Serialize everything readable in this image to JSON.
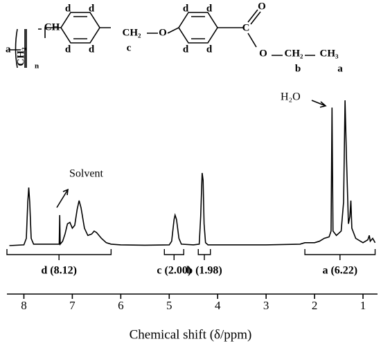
{
  "chart_data": {
    "type": "line",
    "x_label": "Chemical shift (δ/ppm)",
    "xlim": [
      8.35,
      0.7
    ],
    "xticks": [
      8,
      7,
      6,
      5,
      4,
      3,
      2,
      1
    ],
    "ylim": [
      0,
      100
    ],
    "color": "#000000",
    "x": [
      8.3,
      8.0,
      7.95,
      7.92,
      7.9,
      7.88,
      7.85,
      7.8,
      7.5,
      7.3,
      7.27,
      7.26,
      7.25,
      7.2,
      7.15,
      7.1,
      7.05,
      7.0,
      6.95,
      6.9,
      6.86,
      6.82,
      6.75,
      6.68,
      6.6,
      6.55,
      6.5,
      6.4,
      6.3,
      6.2,
      6.0,
      5.5,
      5.0,
      4.95,
      4.9,
      4.88,
      4.85,
      4.8,
      4.75,
      4.5,
      4.38,
      4.35,
      4.32,
      4.3,
      4.28,
      4.25,
      4.2,
      3.5,
      3.0,
      2.3,
      2.2,
      2.0,
      1.9,
      1.8,
      1.7,
      1.66,
      1.64,
      1.62,
      1.55,
      1.45,
      1.4,
      1.37,
      1.34,
      1.3,
      1.27,
      1.25,
      1.23,
      1.15,
      1.0,
      0.9,
      0.87,
      0.85,
      0.8,
      0.75
    ],
    "values": [
      0,
      0.5,
      5,
      30,
      40,
      30,
      5,
      1,
      1,
      1,
      1,
      21,
      1,
      3,
      8,
      15,
      16,
      12,
      14,
      25,
      31,
      26,
      12,
      7,
      8,
      10,
      9,
      5,
      2,
      1,
      0.5,
      0.3,
      0.5,
      3,
      18,
      21,
      18,
      5,
      1,
      0.5,
      1,
      20,
      50,
      45,
      15,
      2,
      0.5,
      0.5,
      0.5,
      1,
      2,
      2,
      3,
      5,
      6,
      10,
      95,
      10,
      7,
      10,
      30,
      100,
      60,
      15,
      20,
      31,
      12,
      5,
      2,
      4,
      7,
      3,
      5,
      2
    ],
    "integrals": [
      {
        "label": "d (8.12)",
        "from": 8.35,
        "to": 6.2
      },
      {
        "label": "c (2.00)",
        "from": 5.1,
        "to": 4.7
      },
      {
        "label": "b (1.98)",
        "from": 4.4,
        "to": 4.15
      },
      {
        "label": "a (6.22)",
        "from": 2.2,
        "to": 0.75
      }
    ],
    "annotations": [
      "Solvent",
      "H₂O"
    ]
  },
  "structure": {
    "labels": [
      "a",
      "CH₂",
      "CH",
      "n",
      "d",
      "d",
      "d",
      "d",
      "c",
      "CH₂",
      "O",
      "d",
      "d",
      "d",
      "d",
      "C",
      "O",
      "O",
      "CH₂",
      "CH₃",
      "b",
      "a"
    ]
  }
}
